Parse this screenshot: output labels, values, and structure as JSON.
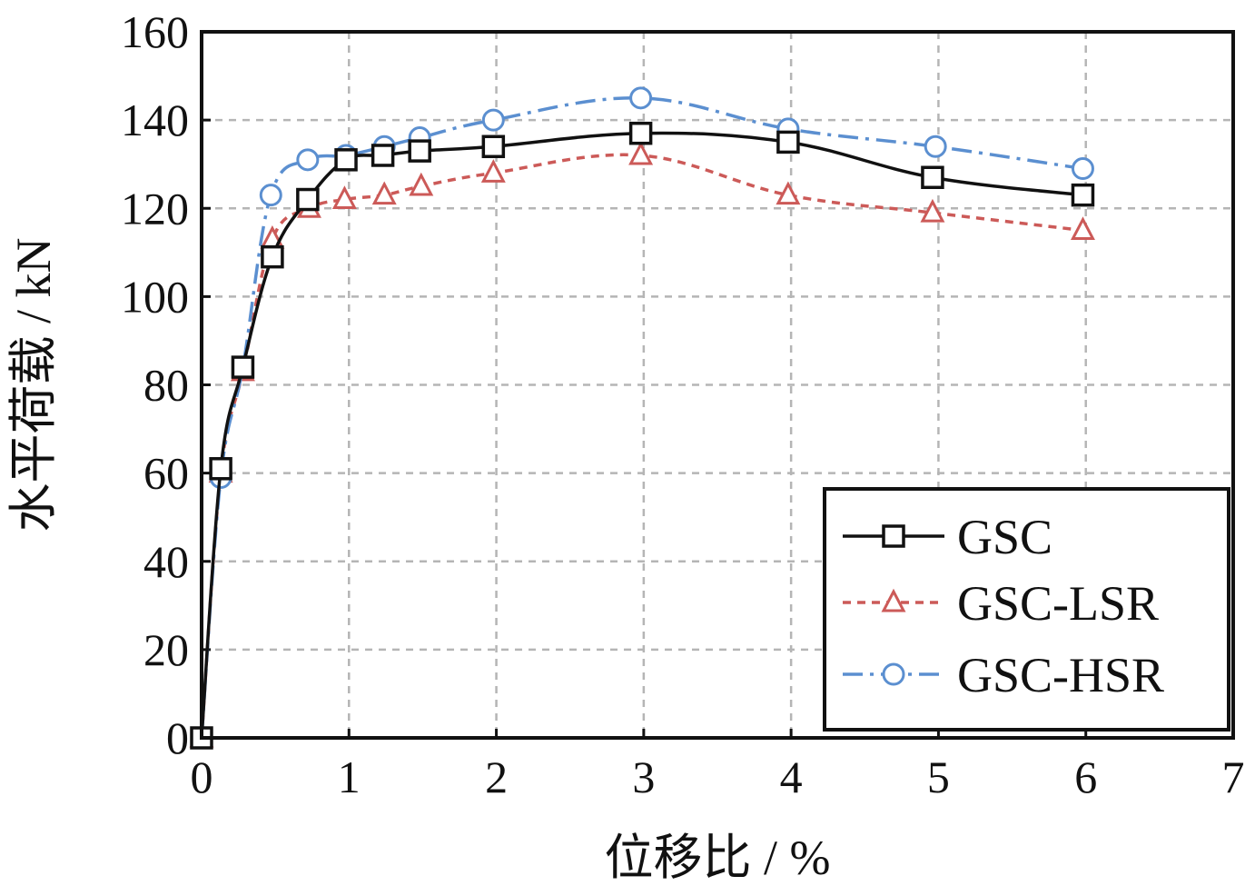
{
  "chart_data": {
    "type": "line",
    "xlabel": "位移比 / %",
    "ylabel": "水平荷载 / kN",
    "xlim": [
      0,
      7
    ],
    "ylim": [
      0,
      160
    ],
    "xticks": [
      "0",
      "1",
      "2",
      "3",
      "4",
      "5",
      "6",
      "7"
    ],
    "yticks": [
      "0",
      "20",
      "40",
      "60",
      "80",
      "100",
      "120",
      "140",
      "160"
    ],
    "grid": true,
    "legend_position": "bottom-right",
    "series": [
      {
        "name": "GSC",
        "color": "#111111",
        "marker": "square",
        "line": "solid",
        "x": [
          0,
          0.13,
          0.28,
          0.48,
          0.72,
          0.98,
          1.23,
          1.48,
          1.98,
          2.98,
          3.98,
          4.96,
          5.98
        ],
        "y": [
          0,
          61,
          84,
          109,
          122,
          131,
          132,
          133,
          134,
          137,
          135,
          127,
          123
        ]
      },
      {
        "name": "GSC-LSR",
        "color": "#cc5a58",
        "marker": "triangle",
        "line": "dashed",
        "x": [
          0,
          0.13,
          0.28,
          0.48,
          0.73,
          0.97,
          1.24,
          1.49,
          1.98,
          2.98,
          3.98,
          4.96,
          5.98
        ],
        "y": [
          0,
          60,
          83,
          113,
          120,
          122,
          123,
          125,
          128,
          132,
          123,
          119,
          115
        ]
      },
      {
        "name": "GSC-HSR",
        "color": "#5b8fd0",
        "marker": "circle",
        "line": "dashdot",
        "x": [
          0,
          0.13,
          0.28,
          0.47,
          0.72,
          0.98,
          1.24,
          1.48,
          1.98,
          2.98,
          3.98,
          4.98,
          5.98
        ],
        "y": [
          0,
          59,
          84,
          123,
          131,
          132,
          134,
          136,
          140,
          145,
          138,
          134,
          129
        ]
      }
    ]
  }
}
